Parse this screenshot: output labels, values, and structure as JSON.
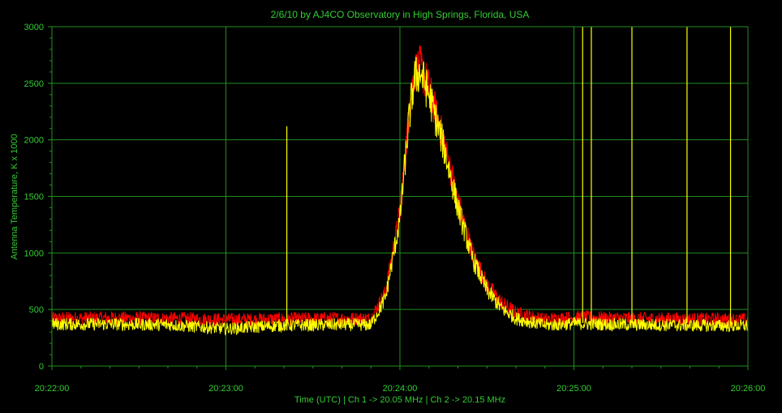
{
  "chart_data": {
    "type": "line",
    "title": "2/6/10  by  AJ4CO Observatory  in  High Springs, Florida, USA",
    "xlabel": "Time (UTC)  |  Ch 1 -> 20.05 MHz  |  Ch 2 -> 20.15 MHz",
    "ylabel": "Antenna Temperature, K x 1000",
    "xlim_seconds_after_start": [
      0,
      240
    ],
    "ylim": [
      0,
      3000
    ],
    "x_ticks": [
      "20:22:00",
      "20:23:00",
      "20:24:00",
      "20:25:00",
      "20:26:00"
    ],
    "y_ticks": [
      "0",
      "500",
      "1000",
      "1500",
      "2000",
      "2500",
      "3000"
    ],
    "grid": true,
    "colors": {
      "background": "#000000",
      "grid": "#1f8f1f",
      "text": "#33cc33",
      "ch1": "#ff0000",
      "ch2": "#ffff00"
    },
    "series": [
      {
        "name": "Ch 1",
        "color": "#ff0000",
        "x_seconds": [
          0,
          20,
          40,
          60,
          80,
          100,
          110,
          115,
          120,
          123,
          125,
          127,
          130,
          135,
          140,
          145,
          150,
          155,
          160,
          170,
          180,
          190,
          200,
          220,
          240
        ],
        "values": [
          420,
          425,
          420,
          410,
          415,
          420,
          420,
          650,
          1350,
          2200,
          2600,
          2650,
          2450,
          2000,
          1450,
          1000,
          720,
          560,
          470,
          410,
          430,
          425,
          420,
          415,
          410
        ]
      },
      {
        "name": "Ch 2",
        "color": "#ffff00",
        "x_seconds": [
          0,
          20,
          40,
          60,
          80,
          100,
          110,
          115,
          120,
          123,
          125,
          127,
          130,
          135,
          140,
          145,
          150,
          155,
          160,
          170,
          180,
          190,
          200,
          220,
          240
        ],
        "values": [
          370,
          370,
          365,
          330,
          360,
          365,
          365,
          600,
          1300,
          2150,
          2550,
          2600,
          2400,
          1950,
          1400,
          950,
          670,
          510,
          420,
          360,
          375,
          370,
          365,
          360,
          355
        ]
      }
    ],
    "spikes": [
      {
        "x_seconds": 81,
        "value": 2120
      },
      {
        "x_seconds": 183,
        "value": 3000
      },
      {
        "x_seconds": 186,
        "value": 3000
      },
      {
        "x_seconds": 200,
        "value": 3000
      },
      {
        "x_seconds": 219,
        "value": 3000
      },
      {
        "x_seconds": 234,
        "value": 3000
      }
    ]
  }
}
